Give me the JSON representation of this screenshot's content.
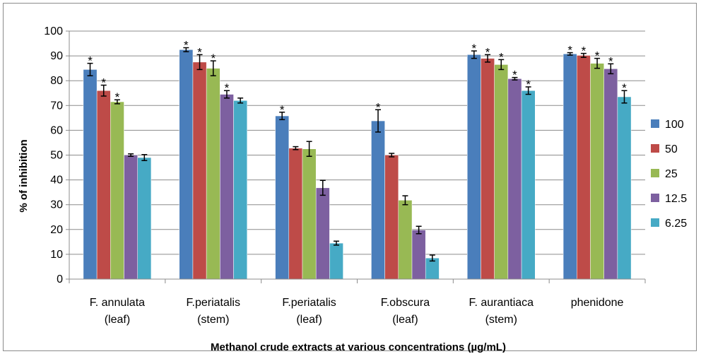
{
  "chart_data": {
    "type": "bar",
    "title": "",
    "xlabel": "Methanol crude extracts at various concentrations (µg/mL)",
    "ylabel": "% of inhibition",
    "ylim": [
      0,
      100
    ],
    "yticks": [
      0,
      10,
      20,
      30,
      40,
      50,
      60,
      70,
      80,
      90,
      100
    ],
    "grid": true,
    "legend_position": "right",
    "categories": [
      [
        "F. annulata",
        "(leaf)"
      ],
      [
        "F.periatalis",
        "(stem)"
      ],
      [
        "F.periatalis",
        "(leaf)"
      ],
      [
        "F.obscura",
        "(leaf)"
      ],
      [
        "F. aurantiaca",
        "(stem)"
      ],
      [
        "phenidone",
        ""
      ]
    ],
    "series": [
      {
        "name": "100",
        "color": "#4a7ebb",
        "values": [
          84.5,
          92.5,
          65.8,
          63.8,
          90.5,
          90.8
        ],
        "errors": [
          2.5,
          0.8,
          1.5,
          4.5,
          1.5,
          0.5
        ],
        "significant": [
          true,
          true,
          true,
          true,
          true,
          true
        ]
      },
      {
        "name": "50",
        "color": "#be4b48",
        "values": [
          76.0,
          87.5,
          52.8,
          50.0,
          89.0,
          90.2
        ],
        "errors": [
          2.2,
          3.0,
          0.6,
          0.7,
          1.5,
          0.8
        ],
        "significant": [
          true,
          true,
          false,
          false,
          true,
          true
        ]
      },
      {
        "name": "25",
        "color": "#98b954",
        "values": [
          71.5,
          85.0,
          52.5,
          31.8,
          86.5,
          87.0
        ],
        "errors": [
          0.8,
          3.0,
          3.0,
          1.8,
          2.0,
          2.0
        ],
        "significant": [
          true,
          true,
          false,
          false,
          true,
          true
        ]
      },
      {
        "name": "12.5",
        "color": "#7d60a0",
        "values": [
          50.0,
          74.5,
          36.8,
          19.8,
          80.8,
          84.8
        ],
        "errors": [
          0.5,
          1.5,
          3.0,
          1.5,
          0.5,
          2.0
        ],
        "significant": [
          false,
          true,
          false,
          false,
          true,
          true
        ]
      },
      {
        "name": "6.25",
        "color": "#46aac5",
        "values": [
          49.0,
          72.0,
          14.5,
          8.5,
          76.0,
          73.5
        ],
        "errors": [
          1.2,
          1.0,
          0.8,
          1.2,
          1.5,
          2.5
        ],
        "significant": [
          false,
          false,
          false,
          false,
          true,
          true
        ]
      }
    ],
    "annotations": {
      "significance_marker": "*"
    }
  }
}
